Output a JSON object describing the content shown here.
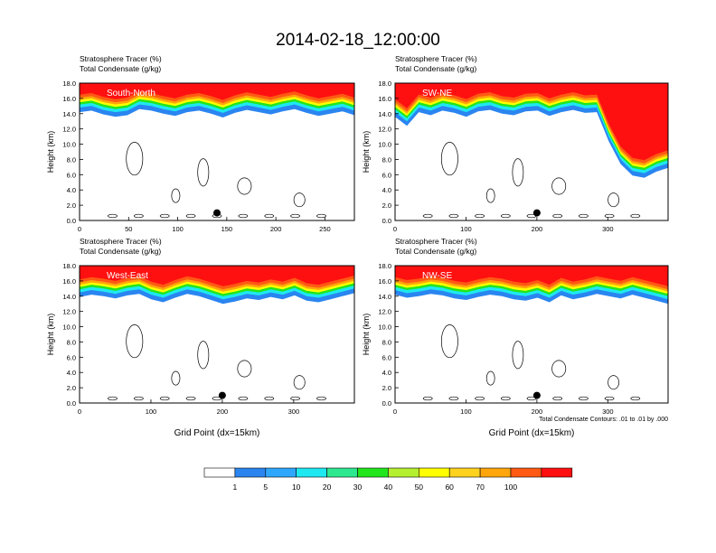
{
  "title": "2014-02-18_12:00:00",
  "colors": {
    "palette": [
      "#ffffff",
      "#2a85f0",
      "#2fa7ff",
      "#1ee8f0",
      "#2ee890",
      "#22e61c",
      "#b4f030",
      "#ffff00",
      "#ffd21e",
      "#ffa60c",
      "#ff5a14",
      "#ff1010"
    ],
    "contour": "#000000"
  },
  "chart_data": [
    {
      "type": "heatmap",
      "heading_line1": "Stratosphere Tracer   (%)",
      "heading_line2": "Total Condensate   (g/kg)",
      "label": "South-North",
      "ylabel": "Height (km)",
      "xlabel": "",
      "xlim": [
        0,
        280
      ],
      "ylim": [
        0,
        18
      ],
      "xticks": [
        "0",
        "50",
        "100",
        "150",
        "200",
        "250"
      ],
      "yticks": [
        "0.0",
        "2.0",
        "4.0",
        "6.0",
        "8.0",
        "10.0",
        "12.0",
        "14.0",
        "16.0",
        "18.0"
      ],
      "marker": {
        "x": 140,
        "y": 1.0
      },
      "tropopause_km": [
        14.8,
        15.0,
        14.5,
        14.2,
        14.4,
        15.2,
        15.0,
        14.6,
        14.3,
        14.8,
        15.0,
        14.6,
        14.1,
        14.7,
        15.1,
        14.8,
        14.5,
        14.9,
        15.2,
        14.7,
        14.3,
        14.6,
        14.9,
        14.4
      ]
    },
    {
      "type": "heatmap",
      "heading_line1": "Stratosphere Tracer   (%)",
      "heading_line2": "Total Condensate   (g/kg)",
      "label": "SW-NE",
      "ylabel": "Height (km)",
      "xlabel": "",
      "xlim": [
        0,
        385
      ],
      "ylim": [
        0,
        18
      ],
      "xticks": [
        "0",
        "100",
        "200",
        "300"
      ],
      "yticks": [
        "0.0",
        "2.0",
        "4.0",
        "6.0",
        "8.0",
        "10.0",
        "12.0",
        "14.0",
        "16.0",
        "18.0"
      ],
      "marker": {
        "x": 200,
        "y": 1.0
      },
      "tropopause_km": [
        14.2,
        13.0,
        14.8,
        14.4,
        15.0,
        14.7,
        14.2,
        14.9,
        15.1,
        14.6,
        14.4,
        14.9,
        15.0,
        14.3,
        14.8,
        15.1,
        14.7,
        14.8,
        11.0,
        8.0,
        6.5,
        6.2,
        7.0,
        7.5
      ]
    },
    {
      "type": "heatmap",
      "heading_line1": "Stratosphere Tracer   (%)",
      "heading_line2": "Total Condensate   (g/kg)",
      "label": "West-East",
      "ylabel": "Height (km)",
      "xlabel": "Grid Point (dx=15km)",
      "xlim": [
        0,
        385
      ],
      "ylim": [
        0,
        18
      ],
      "xticks": [
        "0",
        "100",
        "200",
        "300"
      ],
      "yticks": [
        "0.0",
        "2.0",
        "4.0",
        "6.0",
        "8.0",
        "10.0",
        "12.0",
        "14.0",
        "16.0",
        "18.0"
      ],
      "marker": {
        "x": 200,
        "y": 1.0
      },
      "tropopause_km": [
        14.5,
        14.8,
        14.6,
        14.3,
        14.7,
        14.9,
        14.2,
        13.8,
        14.4,
        14.9,
        14.6,
        14.1,
        13.6,
        13.9,
        14.3,
        14.1,
        14.5,
        14.2,
        14.7,
        14.0,
        13.8,
        14.2,
        14.6,
        15.0
      ]
    },
    {
      "type": "heatmap",
      "heading_line1": "Stratosphere Tracer   (%)",
      "heading_line2": "Total Condensate   (g/kg)",
      "label": "NW-SE",
      "ylabel": "Height (km)",
      "xlabel": "Grid Point (dx=15km)",
      "footnote": "Total Condensate Contours: .01 to .01 by .000",
      "xlim": [
        0,
        385
      ],
      "ylim": [
        0,
        18
      ],
      "xticks": [
        "0",
        "100",
        "200",
        "300"
      ],
      "yticks": [
        "0.0",
        "2.0",
        "4.0",
        "6.0",
        "8.0",
        "10.0",
        "12.0",
        "14.0",
        "16.0",
        "18.0"
      ],
      "marker": {
        "x": 200,
        "y": 1.0
      },
      "tropopause_km": [
        14.8,
        14.4,
        14.6,
        14.9,
        14.7,
        14.3,
        14.1,
        14.5,
        14.8,
        14.6,
        14.2,
        14.0,
        14.4,
        13.8,
        14.7,
        14.2,
        14.5,
        14.9,
        14.6,
        14.3,
        14.8,
        14.4,
        14.0,
        13.6
      ]
    }
  ],
  "colorbar": {
    "labels": [
      "1",
      "5",
      "10",
      "20",
      "30",
      "40",
      "50",
      "60",
      "70",
      "100"
    ]
  }
}
